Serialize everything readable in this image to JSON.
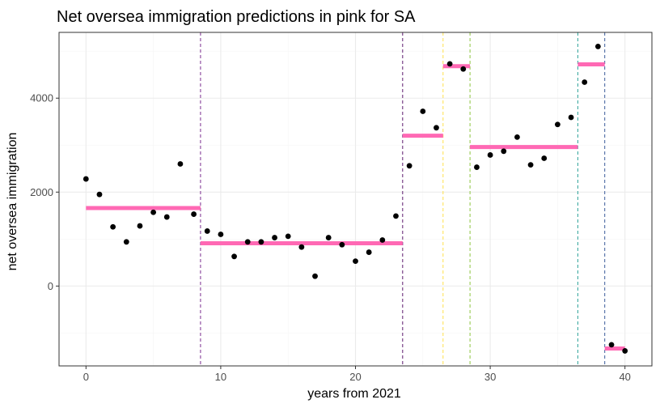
{
  "chart_data": {
    "type": "scatter",
    "title": "Net oversea immigration predictions in pink for SA",
    "xlabel": "years from 2021",
    "ylabel": "net oversea immigration",
    "xlim": [
      -2,
      42
    ],
    "ylim": [
      -1700,
      5400
    ],
    "x_ticks": [
      0,
      10,
      20,
      30,
      40
    ],
    "y_ticks": [
      0,
      2000,
      4000
    ],
    "grid": true,
    "colors": {
      "points": "#000000",
      "predictions": "#ff69b4",
      "panel_border": "#333333",
      "grid_major": "#ebebeb",
      "grid_minor": "#f5f5f5"
    },
    "points": [
      {
        "x": 0,
        "y": 2280
      },
      {
        "x": 1,
        "y": 1950
      },
      {
        "x": 2,
        "y": 1260
      },
      {
        "x": 3,
        "y": 940
      },
      {
        "x": 4,
        "y": 1280
      },
      {
        "x": 5,
        "y": 1570
      },
      {
        "x": 6,
        "y": 1470
      },
      {
        "x": 7,
        "y": 2600
      },
      {
        "x": 8,
        "y": 1530
      },
      {
        "x": 9,
        "y": 1170
      },
      {
        "x": 10,
        "y": 1100
      },
      {
        "x": 11,
        "y": 630
      },
      {
        "x": 12,
        "y": 940
      },
      {
        "x": 13,
        "y": 940
      },
      {
        "x": 14,
        "y": 1030
      },
      {
        "x": 15,
        "y": 1060
      },
      {
        "x": 16,
        "y": 830
      },
      {
        "x": 17,
        "y": 210
      },
      {
        "x": 18,
        "y": 1030
      },
      {
        "x": 19,
        "y": 880
      },
      {
        "x": 20,
        "y": 530
      },
      {
        "x": 21,
        "y": 720
      },
      {
        "x": 22,
        "y": 980
      },
      {
        "x": 23,
        "y": 1490
      },
      {
        "x": 24,
        "y": 2560
      },
      {
        "x": 25,
        "y": 3720
      },
      {
        "x": 26,
        "y": 3370
      },
      {
        "x": 27,
        "y": 4730
      },
      {
        "x": 28,
        "y": 4620
      },
      {
        "x": 29,
        "y": 2530
      },
      {
        "x": 30,
        "y": 2790
      },
      {
        "x": 31,
        "y": 2870
      },
      {
        "x": 32,
        "y": 3170
      },
      {
        "x": 33,
        "y": 2580
      },
      {
        "x": 34,
        "y": 2720
      },
      {
        "x": 35,
        "y": 3440
      },
      {
        "x": 36,
        "y": 3590
      },
      {
        "x": 37,
        "y": 4340
      },
      {
        "x": 38,
        "y": 5100
      },
      {
        "x": 39,
        "y": -1250
      },
      {
        "x": 40,
        "y": -1380
      }
    ],
    "predictions": [
      {
        "x_start": 0,
        "x_end": 8.5,
        "y": 1660
      },
      {
        "x_start": 8.5,
        "x_end": 23.5,
        "y": 910
      },
      {
        "x_start": 23.5,
        "x_end": 26.5,
        "y": 3200
      },
      {
        "x_start": 26.5,
        "x_end": 28.5,
        "y": 4680
      },
      {
        "x_start": 28.5,
        "x_end": 36.5,
        "y": 2960
      },
      {
        "x_start": 36.5,
        "x_end": 38.5,
        "y": 4720
      },
      {
        "x_start": 38.5,
        "x_end": 40,
        "y": -1330
      }
    ],
    "breakpoints": [
      {
        "x": 8.5,
        "color": "#7b2d8e"
      },
      {
        "x": 23.5,
        "color": "#5c1a6e"
      },
      {
        "x": 26.5,
        "color": "#ffe04a"
      },
      {
        "x": 28.5,
        "color": "#8cc63f"
      },
      {
        "x": 36.5,
        "color": "#2aa198"
      },
      {
        "x": 38.5,
        "color": "#3b5b9a"
      }
    ]
  }
}
